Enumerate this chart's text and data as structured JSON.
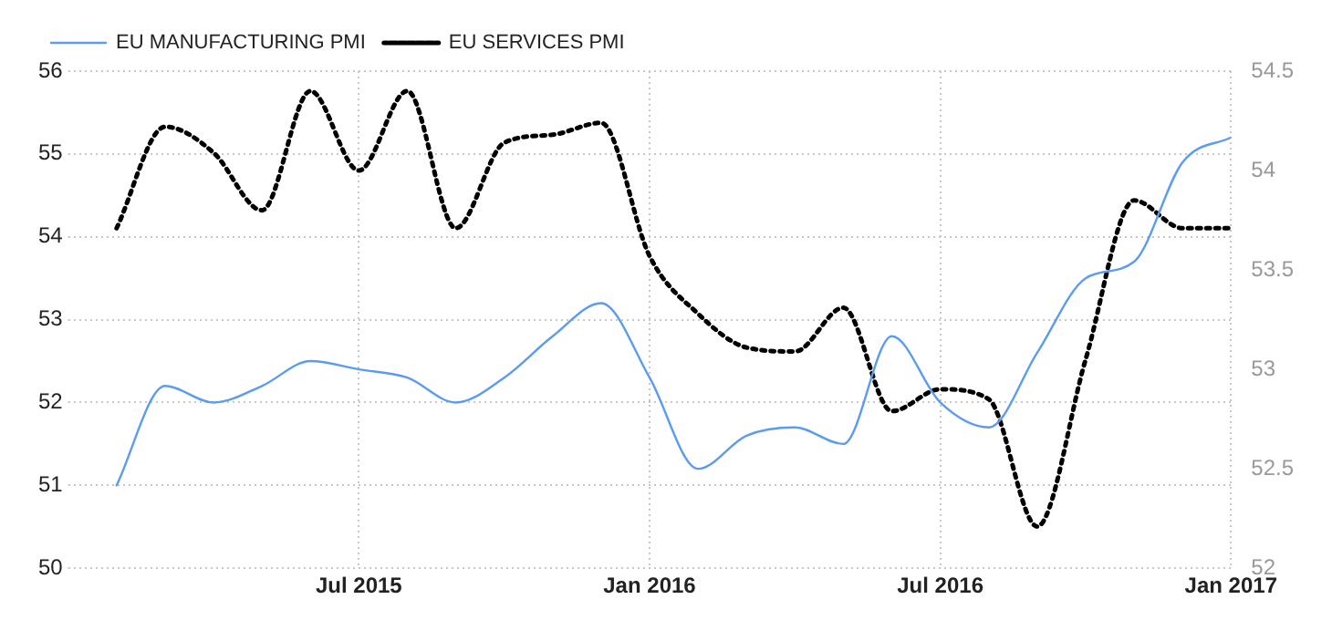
{
  "chart_data": {
    "type": "line",
    "x": [
      "2015-02",
      "2015-03",
      "2015-04",
      "2015-05",
      "2015-06",
      "2015-07",
      "2015-08",
      "2015-09",
      "2015-10",
      "2015-11",
      "2015-12",
      "2016-01",
      "2016-02",
      "2016-03",
      "2016-04",
      "2016-05",
      "2016-06",
      "2016-07",
      "2016-08",
      "2016-09",
      "2016-10",
      "2016-11",
      "2016-12",
      "2017-01"
    ],
    "series": [
      {
        "name": "EU MANUFACTURING PMI",
        "color": "#5b9bf0",
        "line_style": "solid",
        "values": [
          51.0,
          52.2,
          52.0,
          52.2,
          52.5,
          52.4,
          52.3,
          52.0,
          52.3,
          52.8,
          53.2,
          52.3,
          51.2,
          51.6,
          51.7,
          51.5,
          52.8,
          52.0,
          51.7,
          52.6,
          53.5,
          53.7,
          54.9,
          55.2
        ]
      },
      {
        "name": "EU SERVICES PMI",
        "color": "#000000",
        "line_style": "dotted",
        "axis": "y2",
        "values": [
          53.71,
          54.22,
          54.09,
          53.8,
          54.4,
          54.0,
          54.4,
          53.71,
          54.14,
          54.18,
          54.24,
          53.57,
          53.28,
          53.11,
          53.09,
          53.31,
          52.79,
          52.9,
          52.85,
          52.21,
          53.05,
          53.85,
          53.71,
          53.71
        ]
      }
    ],
    "xlim": [
      "2015-01",
      "2017-01"
    ],
    "xticks": [
      {
        "value": "2015-07",
        "label": "Jul 2015"
      },
      {
        "value": "2016-01",
        "label": "Jan 2016"
      },
      {
        "value": "2016-07",
        "label": "Jul 2016"
      },
      {
        "value": "2017-01",
        "label": "Jan 2017"
      }
    ],
    "ylim": [
      50,
      56
    ],
    "yticks": [
      50,
      51,
      52,
      53,
      54,
      55,
      56
    ],
    "y2lim": [
      52,
      54.5
    ],
    "y2ticks": [
      52,
      52.5,
      53,
      53.5,
      54,
      54.5
    ],
    "grid": true,
    "legend": "top left",
    "marker": "none"
  }
}
